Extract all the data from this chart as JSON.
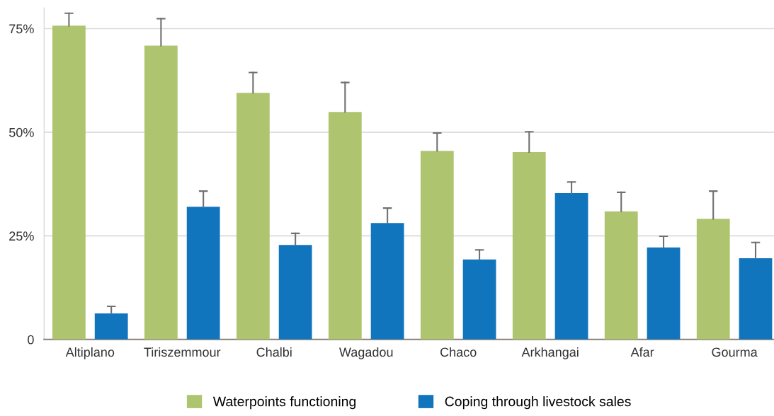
{
  "chart_data": {
    "type": "bar",
    "categories": [
      "Altiplano",
      "Tiriszemmour",
      "Chalbi",
      "Wagadou",
      "Chaco",
      "Arkhangai",
      "Afar",
      "Gourma"
    ],
    "series": [
      {
        "name": "Waterpoints functioning",
        "color": "#afc46f",
        "values": [
          75.7,
          70.9,
          59.5,
          54.9,
          45.5,
          45.2,
          30.9,
          29.1
        ],
        "errors": [
          [
            75.7,
            78.7
          ],
          [
            70.9,
            77.4
          ],
          [
            59.5,
            64.4
          ],
          [
            54.9,
            62.0
          ],
          [
            45.5,
            49.8
          ],
          [
            45.2,
            50.1
          ],
          [
            30.9,
            35.5
          ],
          [
            29.1,
            35.8
          ]
        ]
      },
      {
        "name": "Coping through livestock sales",
        "color": "#1175be",
        "values": [
          6.3,
          32.0,
          22.8,
          28.1,
          19.3,
          35.3,
          22.2,
          19.6
        ],
        "errors": [
          [
            6.3,
            8.0
          ],
          [
            32.0,
            35.8
          ],
          [
            22.8,
            25.6
          ],
          [
            28.1,
            31.7
          ],
          [
            19.3,
            21.6
          ],
          [
            35.3,
            38.0
          ],
          [
            22.2,
            24.9
          ],
          [
            19.6,
            23.4
          ]
        ]
      }
    ],
    "yticks": [
      {
        "value": 0,
        "label": "0"
      },
      {
        "value": 25,
        "label": "25%"
      },
      {
        "value": 50,
        "label": "50%"
      },
      {
        "value": 75,
        "label": "75%"
      }
    ],
    "ylim": [
      0,
      80
    ],
    "grid": "y",
    "legend": "bottom"
  }
}
